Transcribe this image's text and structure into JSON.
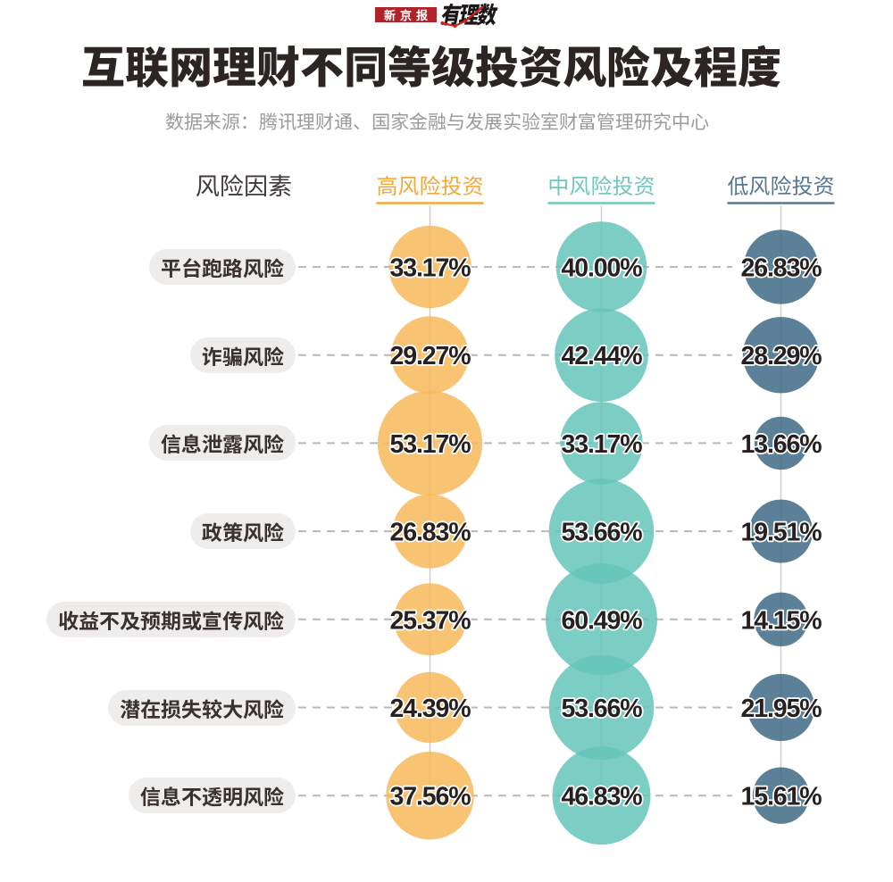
{
  "page": {
    "background": "#ffffff"
  },
  "logo": {
    "brand": "新京报",
    "brand_bg": "#b1232a",
    "brand_color": "#ffffff",
    "product": "有理数",
    "product_color": "#1c1818",
    "spark_color": "#cc1f1f"
  },
  "header": {
    "title": "互联网理财不同等级投资风险及程度",
    "title_color": "#2d2523",
    "source": "数据来源：腾讯理财通、国家金融与发展实验室财富管理研究中心",
    "source_color": "#9b9b9b"
  },
  "chart_data": {
    "type": "bubble",
    "row_header": "风险因素",
    "row_header_color": "#403b3a",
    "categories": [
      "平台跑路风险",
      "诈骗风险",
      "信息泄露风险",
      "政策风险",
      "收益不及预期或宣传风险",
      "潜在损失较大风险",
      "信息不透明风险"
    ],
    "series": [
      {
        "name": "高风险投资",
        "label_color": "#f1a83d",
        "bubble_color": "#f7b85b",
        "values": [
          33.17,
          29.27,
          53.17,
          26.83,
          25.37,
          24.39,
          37.56
        ]
      },
      {
        "name": "中风险投资",
        "label_color": "#70c7bd",
        "bubble_color": "#65c4ba",
        "values": [
          40.0,
          42.44,
          33.17,
          53.66,
          60.49,
          53.66,
          46.83
        ]
      },
      {
        "name": "低风险投资",
        "label_color": "#567890",
        "bubble_color": "#3f6a85",
        "values": [
          26.83,
          28.29,
          13.66,
          19.51,
          14.15,
          21.95,
          15.61
        ]
      }
    ],
    "value_suffix": "%",
    "value_decimals": 2,
    "value_color": "#262020",
    "bubble_opacity": 0.85,
    "category_pill_bg": "#eeedec",
    "category_text_color": "#3a3231",
    "grid_line_color": "#cdcbca",
    "dash_line_color": "#bbb8b8",
    "legend_position": "top",
    "grid": "on",
    "ylim": [
      0,
      100
    ]
  }
}
